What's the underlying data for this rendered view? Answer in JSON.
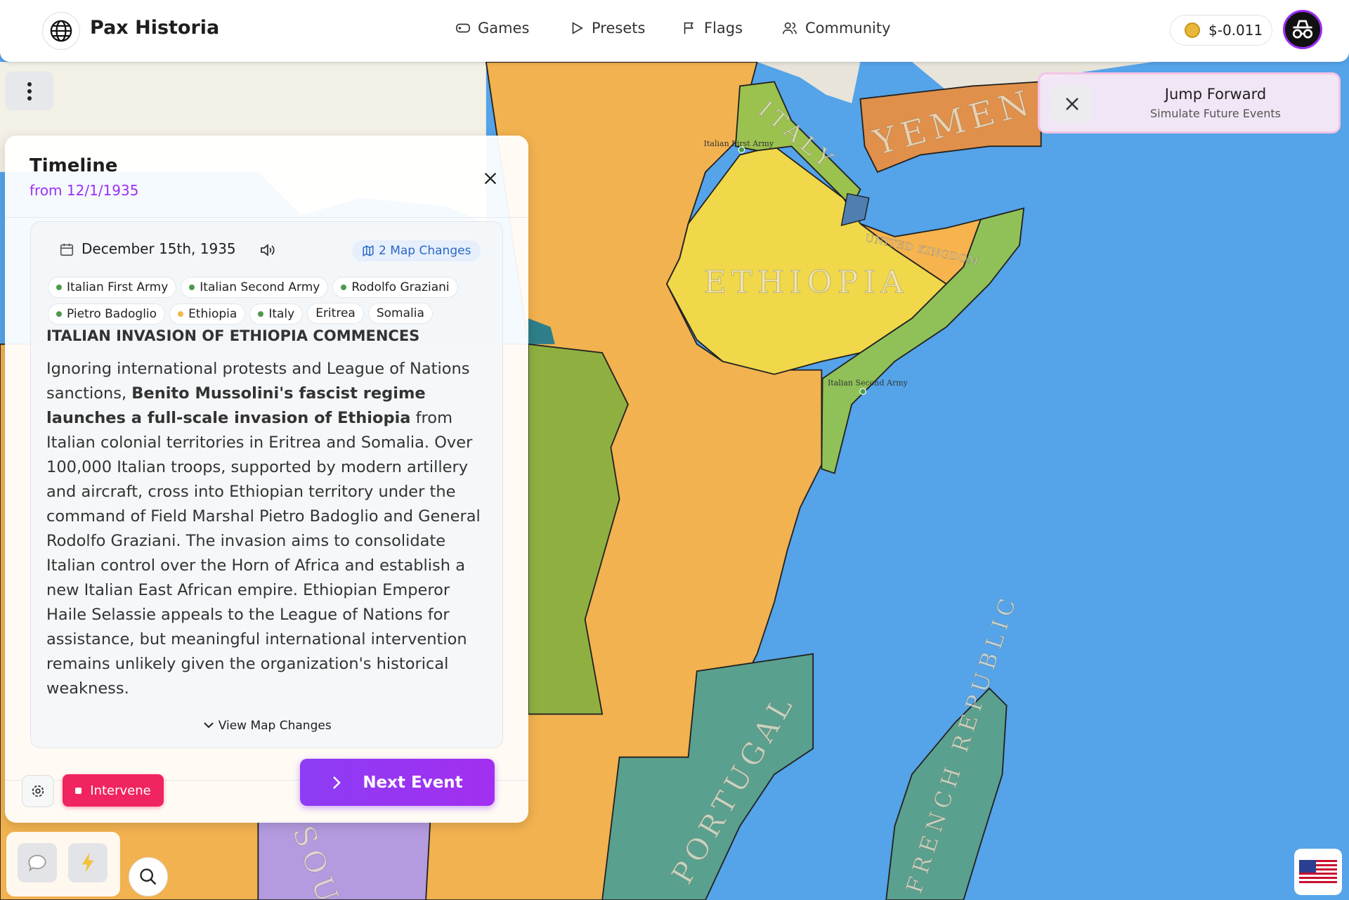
{
  "header": {
    "title": "Pax Historia",
    "nav": [
      "Games",
      "Presets",
      "Flags",
      "Community"
    ],
    "balance": "$-0.011"
  },
  "jump_forward": {
    "title": "Jump Forward",
    "subtitle": "Simulate Future Events"
  },
  "map": {
    "labels": [
      "YEMEN",
      "ITALY",
      "ETHIOPIA",
      "UNITED KINGDOM",
      "PORTUGAL",
      "FRENCH REPUBLIC",
      "SOU"
    ],
    "armies": [
      "Italian First Army",
      "Italian Second Army"
    ]
  },
  "timeline": {
    "title": "Timeline",
    "from": "from 12/1/1935",
    "event": {
      "date": "December 15th, 1935",
      "map_changes": "2 Map Changes",
      "tags": [
        {
          "label": "Italian First Army",
          "dot": "#4c9a4c"
        },
        {
          "label": "Italian Second Army",
          "dot": "#4c9a4c"
        },
        {
          "label": "Rodolfo Graziani",
          "dot": "#4c9a4c"
        },
        {
          "label": "Pietro Badoglio",
          "dot": "#4c9a4c"
        },
        {
          "label": "Ethiopia",
          "dot": "#f2b84b"
        },
        {
          "label": "Italy",
          "dot": "#4c9a4c"
        },
        {
          "label": "Eritrea"
        },
        {
          "label": "Somalia"
        }
      ],
      "headline": "ITALIAN INVASION OF ETHIOPIA COMMENCES",
      "body": [
        "Ignoring international protests and League of Nations sanctions, ",
        "Benito Mussolini's fascist regime launches a full-scale invasion of Ethiopia",
        " from Italian colonial territories in Eritrea and Somalia. Over 100,000 Italian troops, supported by modern artillery and aircraft, cross into Ethiopian territory under the command of Field Marshal Pietro Badoglio and General Rodolfo Graziani. The invasion aims to consolidate Italian control over the Horn of Africa and establish a new Italian East African empire. Ethiopian Emperor Haile Selassie appeals to the League of Nations for assistance, but meaningful international intervention remains unlikely given the organization's historical weakness."
      ],
      "view_changes": "View Map Changes"
    },
    "intervene": "Intervene",
    "next": "Next Event"
  }
}
